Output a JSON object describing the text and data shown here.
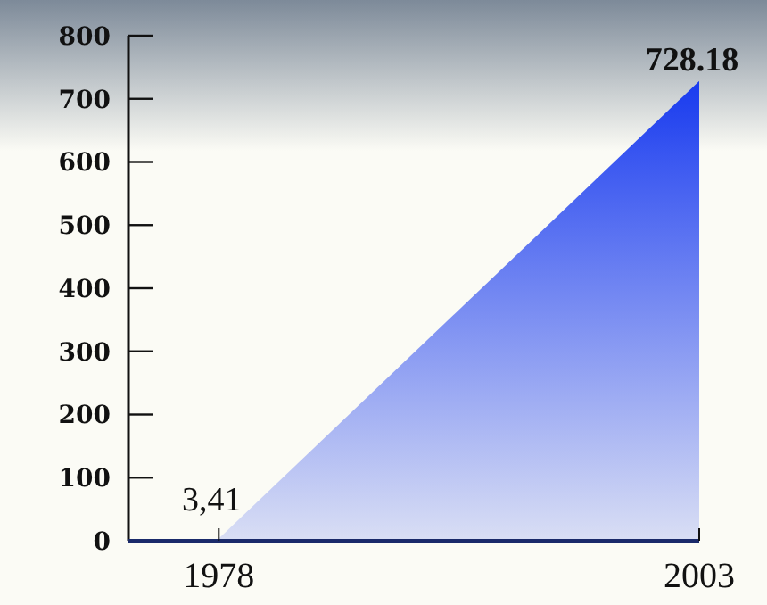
{
  "chart_data": {
    "type": "area",
    "x": [
      1978,
      2003
    ],
    "series": [
      {
        "color": "#1a3cf0",
        "values": [
          3.41,
          728.18
        ],
        "value_labels": [
          "3,41",
          "728.18"
        ]
      }
    ],
    "xlim": [
      1973.3,
      2003
    ],
    "xticks": [
      1978,
      2003
    ],
    "ylim": [
      0,
      800
    ],
    "yticks": [
      0,
      100,
      200,
      300,
      400,
      500,
      600,
      700,
      800
    ],
    "grid": false
  }
}
